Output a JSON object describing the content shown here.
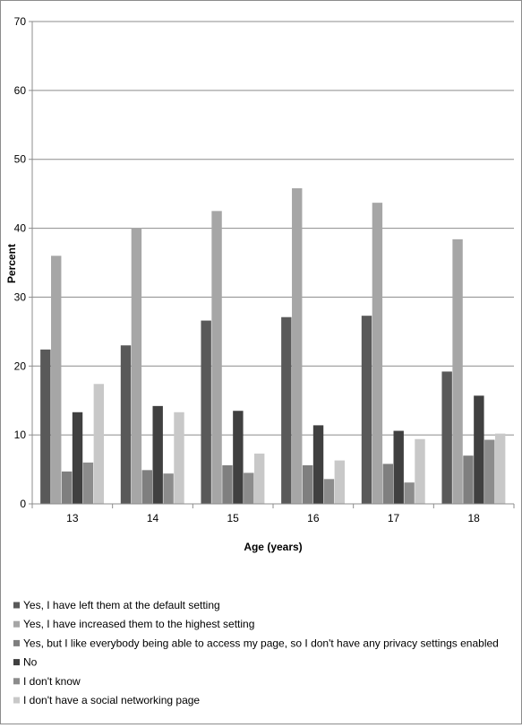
{
  "chart_data": {
    "type": "bar",
    "title": "",
    "xlabel": "Age (years)",
    "ylabel": "Percent",
    "ylim": [
      0,
      70
    ],
    "yticks": [
      0,
      10,
      20,
      30,
      40,
      50,
      60,
      70
    ],
    "grid": true,
    "legend_position": "bottom",
    "categories": [
      "13",
      "14",
      "15",
      "16",
      "17",
      "18"
    ],
    "series": [
      {
        "name": "Yes, I have left them at the default setting",
        "color": "#595959",
        "values": [
          22.4,
          23.0,
          26.6,
          27.1,
          27.3,
          19.2
        ]
      },
      {
        "name": "Yes, I have increased them to the highest setting",
        "color": "#a6a6a6",
        "values": [
          36.0,
          40.0,
          42.5,
          45.8,
          43.7,
          38.4
        ]
      },
      {
        "name": "Yes, but I like everybody being able to access my page, so I don't have any privacy settings enabled",
        "color": "#7f7f7f",
        "values": [
          4.7,
          4.9,
          5.6,
          5.6,
          5.8,
          7.0
        ]
      },
      {
        "name": "No",
        "color": "#404040",
        "values": [
          13.3,
          14.2,
          13.5,
          11.4,
          10.6,
          15.7
        ]
      },
      {
        "name": "I don't know",
        "color": "#8c8c8c",
        "values": [
          6.0,
          4.4,
          4.5,
          3.6,
          3.1,
          9.3
        ]
      },
      {
        "name": "I don't have a social networking page",
        "color": "#c8c8c8",
        "values": [
          17.4,
          13.3,
          7.3,
          6.3,
          9.4,
          10.2
        ]
      }
    ]
  }
}
